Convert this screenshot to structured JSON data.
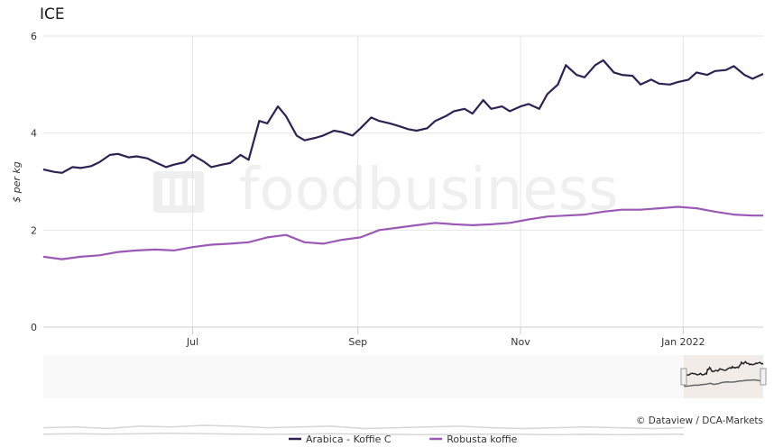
{
  "chart_data": {
    "type": "line",
    "title": "ICE",
    "ylabel": "$ per kg",
    "ylim": [
      0,
      6
    ],
    "yticks": [
      0,
      2,
      4,
      6
    ],
    "xticks": [
      {
        "label": "Jul",
        "date": "2021-07-01"
      },
      {
        "label": "Sep",
        "date": "2021-09-01"
      },
      {
        "label": "Nov",
        "date": "2021-11-01"
      },
      {
        "label": "Jan 2022",
        "date": "2022-01-01"
      }
    ],
    "x_range": [
      "2021-05-06",
      "2022-01-31"
    ],
    "grid": true,
    "legend_position": "bottom-center",
    "series": [
      {
        "name": "Arabica - Koffie C",
        "color": "#2e2253",
        "points": [
          [
            "2021-05-06",
            3.25
          ],
          [
            "2021-05-10",
            3.2
          ],
          [
            "2021-05-13",
            3.18
          ],
          [
            "2021-05-17",
            3.3
          ],
          [
            "2021-05-20",
            3.28
          ],
          [
            "2021-05-24",
            3.32
          ],
          [
            "2021-05-27",
            3.4
          ],
          [
            "2021-05-31",
            3.55
          ],
          [
            "2021-06-03",
            3.57
          ],
          [
            "2021-06-07",
            3.5
          ],
          [
            "2021-06-10",
            3.52
          ],
          [
            "2021-06-14",
            3.48
          ],
          [
            "2021-06-17",
            3.4
          ],
          [
            "2021-06-21",
            3.3
          ],
          [
            "2021-06-24",
            3.35
          ],
          [
            "2021-06-28",
            3.4
          ],
          [
            "2021-07-01",
            3.55
          ],
          [
            "2021-07-05",
            3.42
          ],
          [
            "2021-07-08",
            3.3
          ],
          [
            "2021-07-12",
            3.35
          ],
          [
            "2021-07-15",
            3.38
          ],
          [
            "2021-07-19",
            3.55
          ],
          [
            "2021-07-22",
            3.45
          ],
          [
            "2021-07-26",
            4.25
          ],
          [
            "2021-07-29",
            4.2
          ],
          [
            "2021-08-02",
            4.55
          ],
          [
            "2021-08-05",
            4.35
          ],
          [
            "2021-08-09",
            3.95
          ],
          [
            "2021-08-12",
            3.85
          ],
          [
            "2021-08-16",
            3.9
          ],
          [
            "2021-08-19",
            3.95
          ],
          [
            "2021-08-23",
            4.05
          ],
          [
            "2021-08-26",
            4.02
          ],
          [
            "2021-08-30",
            3.95
          ],
          [
            "2021-09-02",
            4.1
          ],
          [
            "2021-09-06",
            4.32
          ],
          [
            "2021-09-09",
            4.25
          ],
          [
            "2021-09-13",
            4.2
          ],
          [
            "2021-09-16",
            4.15
          ],
          [
            "2021-09-20",
            4.08
          ],
          [
            "2021-09-23",
            4.05
          ],
          [
            "2021-09-27",
            4.1
          ],
          [
            "2021-09-30",
            4.25
          ],
          [
            "2021-10-04",
            4.35
          ],
          [
            "2021-10-07",
            4.45
          ],
          [
            "2021-10-11",
            4.5
          ],
          [
            "2021-10-14",
            4.4
          ],
          [
            "2021-10-18",
            4.68
          ],
          [
            "2021-10-21",
            4.5
          ],
          [
            "2021-10-25",
            4.55
          ],
          [
            "2021-10-28",
            4.45
          ],
          [
            "2021-11-01",
            4.55
          ],
          [
            "2021-11-04",
            4.6
          ],
          [
            "2021-11-08",
            4.5
          ],
          [
            "2021-11-11",
            4.8
          ],
          [
            "2021-11-15",
            5.0
          ],
          [
            "2021-11-18",
            5.4
          ],
          [
            "2021-11-22",
            5.2
          ],
          [
            "2021-11-25",
            5.15
          ],
          [
            "2021-11-29",
            5.4
          ],
          [
            "2021-12-02",
            5.5
          ],
          [
            "2021-12-06",
            5.25
          ],
          [
            "2021-12-09",
            5.2
          ],
          [
            "2021-12-13",
            5.18
          ],
          [
            "2021-12-16",
            5.0
          ],
          [
            "2021-12-20",
            5.1
          ],
          [
            "2021-12-23",
            5.02
          ],
          [
            "2021-12-27",
            5.0
          ],
          [
            "2021-12-30",
            5.05
          ],
          [
            "2022-01-03",
            5.1
          ],
          [
            "2022-01-06",
            5.25
          ],
          [
            "2022-01-10",
            5.2
          ],
          [
            "2022-01-13",
            5.28
          ],
          [
            "2022-01-17",
            5.3
          ],
          [
            "2022-01-20",
            5.38
          ],
          [
            "2022-01-24",
            5.2
          ],
          [
            "2022-01-27",
            5.12
          ],
          [
            "2022-01-31",
            5.22
          ]
        ]
      },
      {
        "name": "Robusta koffie",
        "color": "#9b59b6",
        "points": [
          [
            "2021-05-06",
            1.45
          ],
          [
            "2021-05-13",
            1.4
          ],
          [
            "2021-05-20",
            1.45
          ],
          [
            "2021-05-27",
            1.48
          ],
          [
            "2021-06-03",
            1.55
          ],
          [
            "2021-06-10",
            1.58
          ],
          [
            "2021-06-17",
            1.6
          ],
          [
            "2021-06-24",
            1.58
          ],
          [
            "2021-07-01",
            1.65
          ],
          [
            "2021-07-08",
            1.7
          ],
          [
            "2021-07-15",
            1.72
          ],
          [
            "2021-07-22",
            1.75
          ],
          [
            "2021-07-29",
            1.85
          ],
          [
            "2021-08-05",
            1.9
          ],
          [
            "2021-08-12",
            1.75
          ],
          [
            "2021-08-19",
            1.72
          ],
          [
            "2021-08-26",
            1.8
          ],
          [
            "2021-09-02",
            1.85
          ],
          [
            "2021-09-09",
            2.0
          ],
          [
            "2021-09-16",
            2.05
          ],
          [
            "2021-09-23",
            2.1
          ],
          [
            "2021-09-30",
            2.15
          ],
          [
            "2021-10-07",
            2.12
          ],
          [
            "2021-10-14",
            2.1
          ],
          [
            "2021-10-21",
            2.12
          ],
          [
            "2021-10-28",
            2.15
          ],
          [
            "2021-11-04",
            2.22
          ],
          [
            "2021-11-11",
            2.28
          ],
          [
            "2021-11-18",
            2.3
          ],
          [
            "2021-11-25",
            2.32
          ],
          [
            "2021-12-02",
            2.38
          ],
          [
            "2021-12-09",
            2.42
          ],
          [
            "2021-12-16",
            2.42
          ],
          [
            "2021-12-23",
            2.45
          ],
          [
            "2021-12-30",
            2.48
          ],
          [
            "2022-01-06",
            2.45
          ],
          [
            "2022-01-13",
            2.38
          ],
          [
            "2022-01-20",
            2.32
          ],
          [
            "2022-01-27",
            2.3
          ],
          [
            "2022-01-31",
            2.3
          ]
        ]
      }
    ],
    "credit": "© Dataview / DCA-Markets",
    "watermark": "foodbusiness"
  },
  "navigator": {
    "history_arabica": [
      1.1,
      1.15,
      1.05,
      1.2,
      1.15,
      1.25,
      1.2,
      1.1,
      1.15,
      1.2,
      1.05,
      1.1,
      1.15,
      1.2,
      1.1,
      1.05,
      1.1,
      1.15,
      1.1,
      1.05,
      1.1
    ],
    "history_robusta": [
      0.7,
      0.72,
      0.7,
      0.72,
      0.75,
      0.73,
      0.7,
      0.68,
      0.7,
      0.72,
      0.7,
      0.68,
      0.66,
      0.68,
      0.7,
      0.68,
      0.66,
      0.68,
      0.66,
      0.68,
      0.7
    ]
  }
}
